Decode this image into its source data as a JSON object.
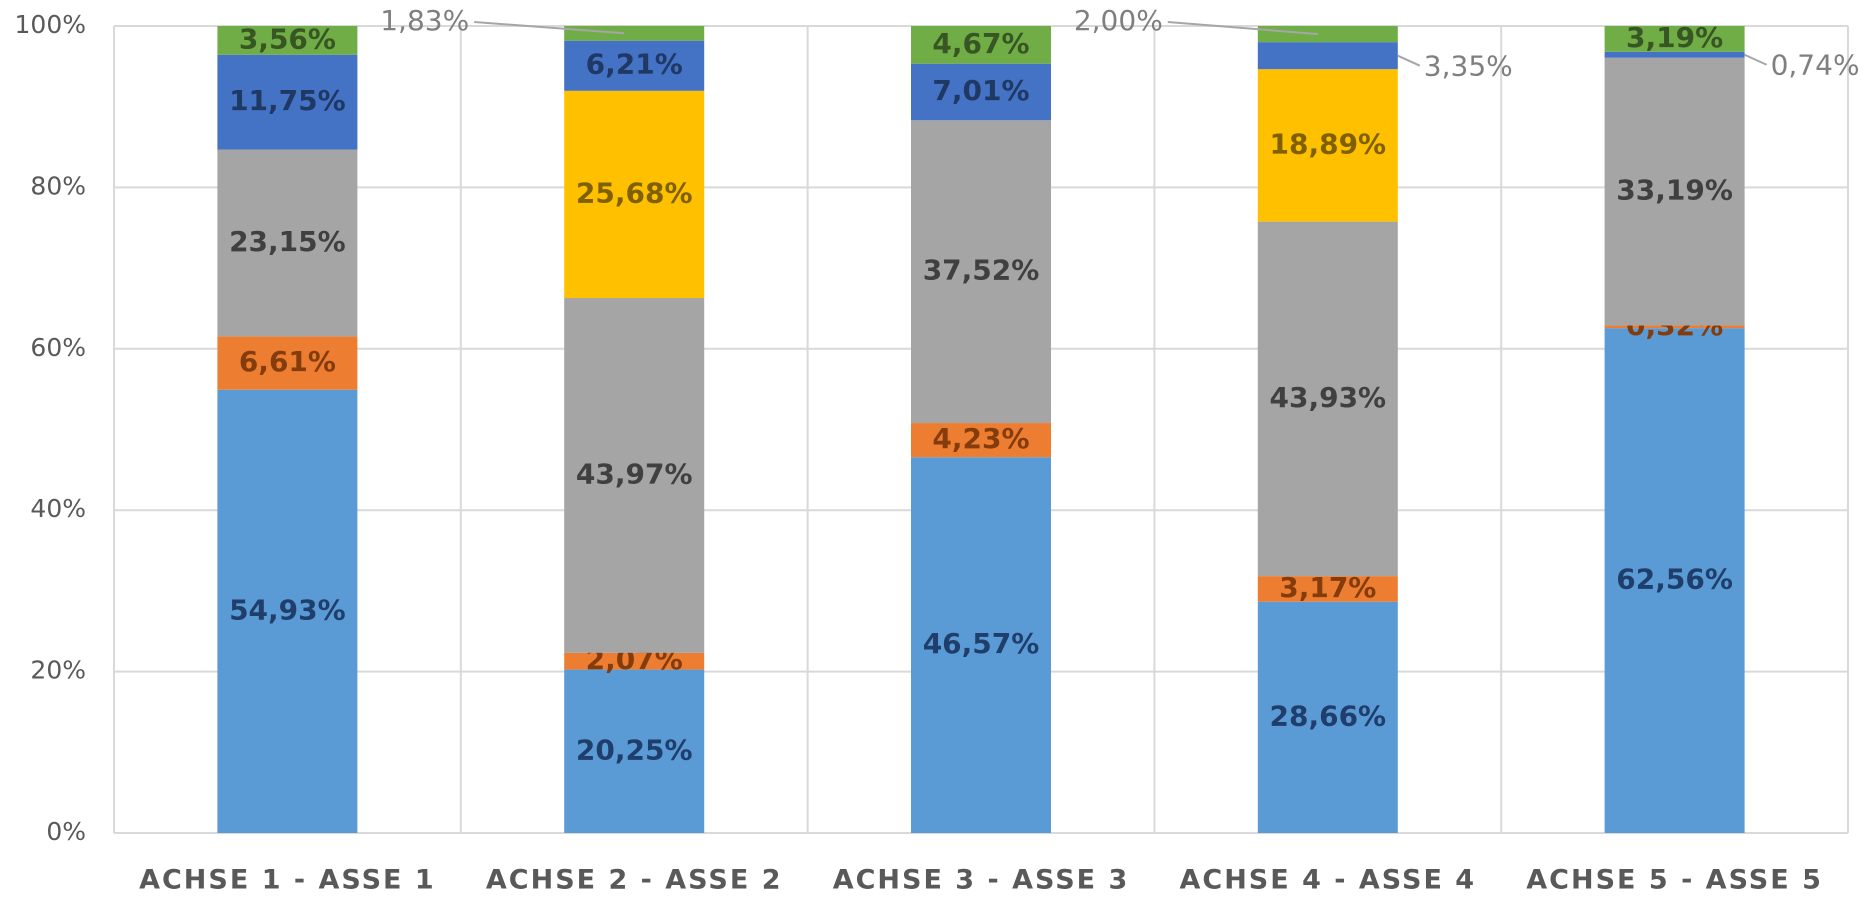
{
  "chart_data": {
    "type": "stacked_bar_percent",
    "categories": [
      "ACHSE 1 - ASSE 1",
      "ACHSE 2 - ASSE 2",
      "ACHSE 3 - ASSE 3",
      "ACHSE 4 - ASSE 4",
      "ACHSE 5 - ASSE 5"
    ],
    "series": [
      {
        "color": "#5b9bd5",
        "label_color": "#1f3e6b",
        "values": [
          54.93,
          20.25,
          46.57,
          28.66,
          62.56
        ],
        "value_labels": [
          "54,93%",
          "20,25%",
          "46,57%",
          "28,66%",
          "62,56%"
        ]
      },
      {
        "color": "#ed7d31",
        "label_color": "#843c0c",
        "values": [
          6.61,
          2.07,
          4.23,
          3.17,
          0.32
        ],
        "value_labels": [
          "6,61%",
          "2,07%",
          "4,23%",
          "3,17%",
          "0,32%"
        ]
      },
      {
        "color": "#a5a5a5",
        "label_color": "#404040",
        "values": [
          23.15,
          43.97,
          37.52,
          43.93,
          33.19
        ],
        "value_labels": [
          "23,15%",
          "43,97%",
          "37,52%",
          "43,93%",
          "33,19%"
        ]
      },
      {
        "color": "#ffc000",
        "label_color": "#7f6000",
        "values": [
          null,
          25.68,
          null,
          18.89,
          null
        ],
        "value_labels": [
          null,
          "25,68%",
          null,
          "18,89%",
          null
        ]
      },
      {
        "color": "#4472c4",
        "label_color": "#1f3864",
        "values": [
          11.75,
          6.21,
          7.01,
          3.35,
          0.74
        ],
        "value_labels": [
          "11,75%",
          "6,21%",
          "7,01%",
          "3,35%",
          "0,74%"
        ]
      },
      {
        "color": "#70ad47",
        "label_color": "#375623",
        "values": [
          3.56,
          1.83,
          4.67,
          2.0,
          3.19
        ],
        "value_labels": [
          "3,56%",
          "1,83%",
          "4,67%",
          "2,00%",
          "3,19%"
        ]
      }
    ],
    "ylim": [
      0,
      100
    ],
    "yticks": [
      {
        "value": 0,
        "label": "0%"
      },
      {
        "value": 20,
        "label": "20%"
      },
      {
        "value": 40,
        "label": "40%"
      },
      {
        "value": 60,
        "label": "60%"
      },
      {
        "value": 80,
        "label": "80%"
      },
      {
        "value": 100,
        "label": "100%"
      }
    ],
    "grid": true
  }
}
